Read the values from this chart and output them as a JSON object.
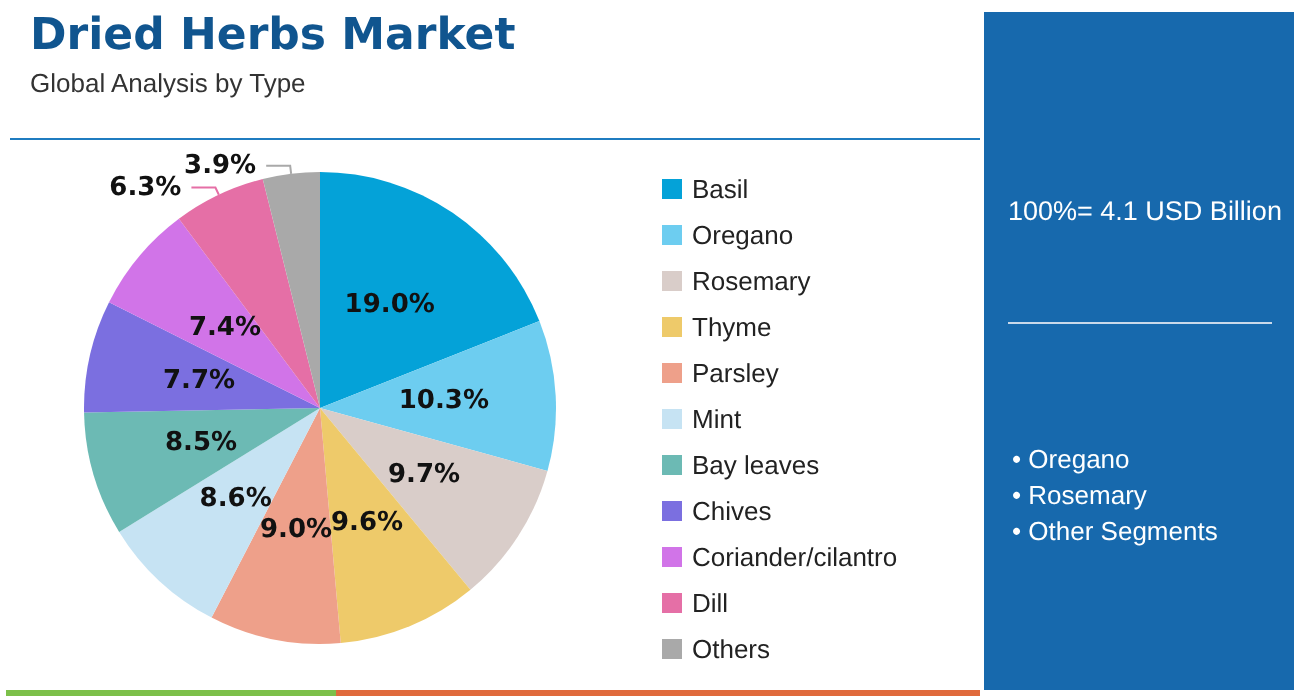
{
  "chart_data": {
    "type": "pie",
    "title": "Dried Herbs Market",
    "subtitle": "Global Analysis by Type",
    "categories": [
      "Basil",
      "Oregano",
      "Rosemary",
      "Thyme",
      "Parsley",
      "Mint",
      "Bay leaves",
      "Chives",
      "Coriander/cilantro",
      "Dill",
      "Others"
    ],
    "values": [
      19.0,
      10.3,
      9.7,
      9.6,
      9.0,
      8.6,
      8.5,
      7.7,
      7.4,
      6.3,
      3.9
    ],
    "value_labels": [
      "19.0%",
      "10.3%",
      "9.7%",
      "9.6%",
      "9.0%",
      "8.6%",
      "8.5%",
      "7.7%",
      "7.4%",
      "6.3%",
      "3.9%"
    ],
    "colors": [
      "#04a2d8",
      "#6dcdf0",
      "#d9cdc9",
      "#eeca6a",
      "#eea08a",
      "#c6e3f3",
      "#6cbab4",
      "#7b6fe0",
      "#d174e8",
      "#e56fa6",
      "#a9a9a9"
    ],
    "legend": "right",
    "annotations": [
      "100%= 4.1 USD Billion",
      "• Oregano",
      "• Rosemary",
      "• Other Segments"
    ]
  }
}
